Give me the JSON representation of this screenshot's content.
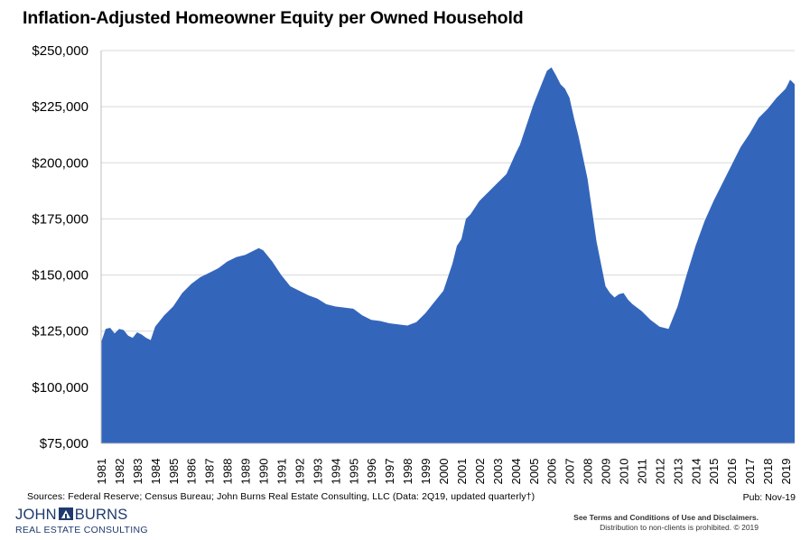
{
  "title": "Inflation-Adjusted Homeowner Equity per Owned Household",
  "footer": {
    "sources": "Sources: Federal Reserve;  Census Bureau;  John Burns Real Estate Consulting, LLC (Data:  2Q19, updated quarterly†)",
    "pub": "Pub: Nov-19",
    "logo_name_left": "JOHN",
    "logo_name_right": "BURNS",
    "logo_sub": "REAL ESTATE CONSULTING",
    "terms_line1": "See Terms and Conditions of Use and Disclaimers.",
    "terms_line2": "Distribution to non-clients is prohibited. © 2019"
  },
  "colors": {
    "area": "#3366bb",
    "grid": "#d9d9d9",
    "logo": "#1f3a6e"
  },
  "chart_data": {
    "type": "area",
    "title": "Inflation-Adjusted Homeowner Equity per Owned Household",
    "xlabel": "",
    "ylabel": "",
    "ylim": [
      75000,
      250000
    ],
    "y_ticks": [
      75000,
      100000,
      125000,
      150000,
      175000,
      200000,
      225000,
      250000
    ],
    "y_tick_labels": [
      "$75,000",
      "$100,000",
      "$125,000",
      "$150,000",
      "$175,000",
      "$200,000",
      "$225,000",
      "$250,000"
    ],
    "x_tick_labels": [
      "1981",
      "1982",
      "1983",
      "1984",
      "1985",
      "1986",
      "1987",
      "1988",
      "1989",
      "1990",
      "1991",
      "1992",
      "1993",
      "1994",
      "1995",
      "1996",
      "1997",
      "1998",
      "1999",
      "2000",
      "2001",
      "2002",
      "2003",
      "2004",
      "2005",
      "2006",
      "2007",
      "2008",
      "2009",
      "2010",
      "2011",
      "2012",
      "2013",
      "2014",
      "2015",
      "2016",
      "2017",
      "2018",
      "2019"
    ],
    "grid": "horizontal",
    "legend": "none",
    "x": [
      1981.0,
      1981.25,
      1981.5,
      1981.75,
      1982.0,
      1982.25,
      1982.5,
      1982.75,
      1983.0,
      1983.25,
      1983.5,
      1983.75,
      1984.0,
      1984.5,
      1985.0,
      1985.5,
      1986.0,
      1986.5,
      1987.0,
      1987.5,
      1988.0,
      1988.5,
      1989.0,
      1989.5,
      1989.75,
      1990.0,
      1990.5,
      1991.0,
      1991.5,
      1992.0,
      1992.5,
      1993.0,
      1993.5,
      1994.0,
      1994.5,
      1995.0,
      1995.5,
      1996.0,
      1996.5,
      1997.0,
      1997.5,
      1998.0,
      1998.5,
      1999.0,
      1999.5,
      2000.0,
      2000.5,
      2000.75,
      2001.0,
      2001.25,
      2001.5,
      2002.0,
      2002.5,
      2003.0,
      2003.5,
      2004.0,
      2004.25,
      2004.5,
      2005.0,
      2005.5,
      2005.75,
      2006.0,
      2006.25,
      2006.5,
      2006.75,
      2007.0,
      2007.25,
      2007.5,
      2008.0,
      2008.5,
      2009.0,
      2009.25,
      2009.5,
      2009.75,
      2010.0,
      2010.25,
      2010.5,
      2011.0,
      2011.5,
      2012.0,
      2012.5,
      2013.0,
      2013.5,
      2014.0,
      2014.5,
      2015.0,
      2015.5,
      2016.0,
      2016.5,
      2017.0,
      2017.5,
      2018.0,
      2018.5,
      2019.0,
      2019.25,
      2019.5
    ],
    "values": [
      120000,
      126000,
      126500,
      124000,
      126000,
      125500,
      123000,
      122000,
      124500,
      123500,
      122000,
      121000,
      127000,
      132000,
      136000,
      142000,
      146000,
      149000,
      151000,
      153000,
      156000,
      158000,
      159000,
      161000,
      162000,
      161000,
      156000,
      150000,
      145000,
      143000,
      141000,
      139500,
      137000,
      136000,
      135500,
      135000,
      132000,
      130000,
      129500,
      128500,
      128000,
      127500,
      129000,
      133000,
      138000,
      143000,
      155000,
      163000,
      166000,
      175000,
      177000,
      183000,
      187000,
      191000,
      195000,
      204000,
      208000,
      214000,
      226000,
      236000,
      241000,
      242500,
      239000,
      235000,
      233000,
      229000,
      220000,
      212000,
      193000,
      165000,
      145000,
      142000,
      140000,
      141500,
      142000,
      139000,
      137000,
      134000,
      130000,
      127000,
      126000,
      136000,
      150000,
      163000,
      174000,
      183000,
      191000,
      199000,
      207000,
      213000,
      220000,
      224000,
      229000,
      233000,
      237000,
      235000
    ]
  }
}
